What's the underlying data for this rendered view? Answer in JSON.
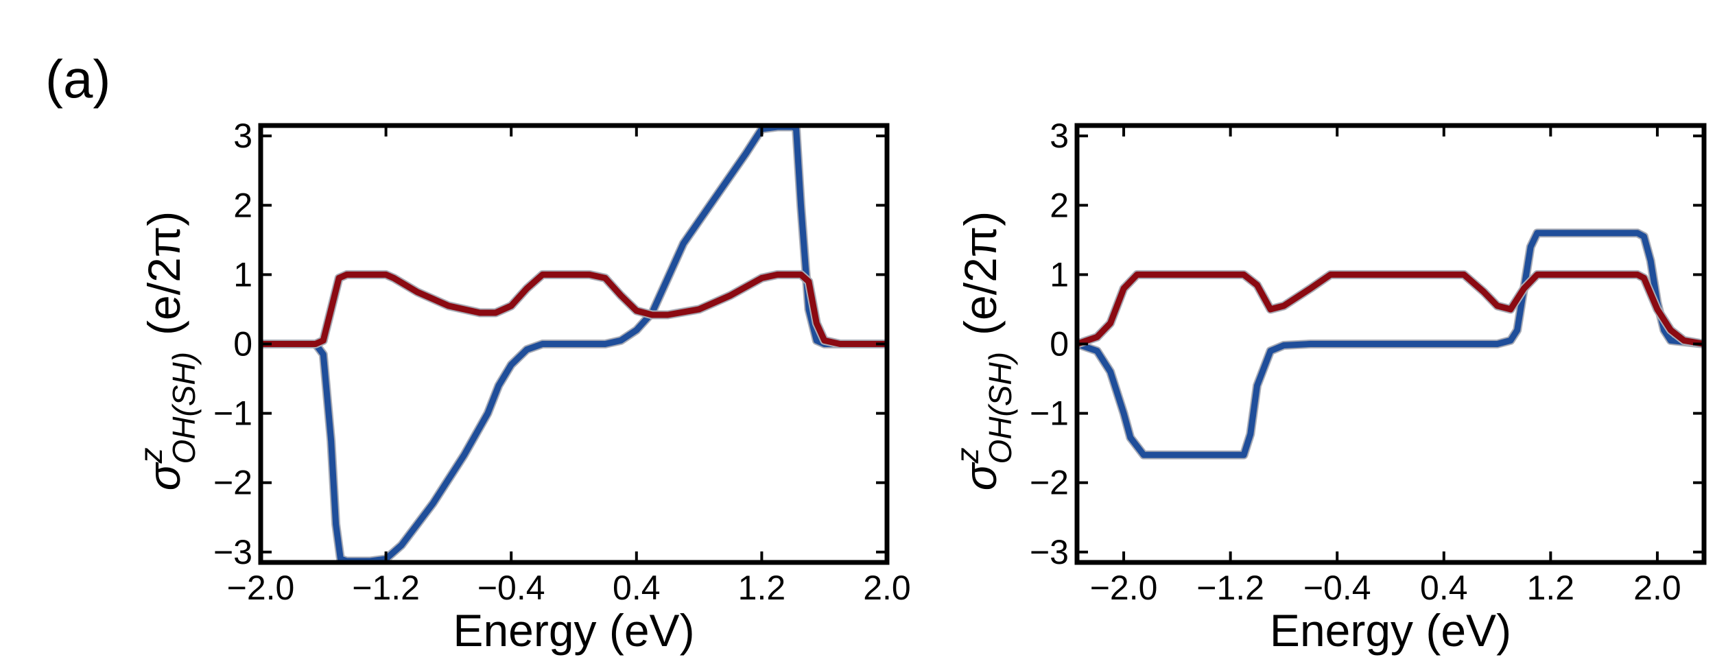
{
  "figure": {
    "panel_label": "(a)"
  },
  "chart_data": [
    {
      "type": "line",
      "xlabel": "Energy (eV)",
      "ylabel": "σ^z_OH(SH) (e/2π)",
      "ylabel_parts": {
        "symbol": "σ",
        "sup": "z",
        "sub": "OH(SH)",
        "unit": "(e/2π)"
      },
      "xlim": [
        -2.0,
        2.0
      ],
      "ylim": [
        -3.15,
        3.15
      ],
      "xticks": [
        -2.0,
        -1.2,
        -0.4,
        0.4,
        1.2,
        2.0
      ],
      "xtick_labels": [
        "−2.0",
        "−1.2",
        "−0.4",
        "0.4",
        "1.2",
        "2.0"
      ],
      "yticks": [
        -3,
        -2,
        -1,
        0,
        1,
        2,
        3
      ],
      "ytick_labels": [
        "−3",
        "−2",
        "−1",
        "0",
        "1",
        "2",
        "3"
      ],
      "series": [
        {
          "name": "blue",
          "color": "#1f4e9a",
          "x": [
            -2.0,
            -1.65,
            -1.6,
            -1.55,
            -1.52,
            -1.49,
            -1.45,
            -1.4,
            -1.3,
            -1.2,
            -1.1,
            -0.9,
            -0.7,
            -0.55,
            -0.48,
            -0.4,
            -0.3,
            -0.2,
            0.2,
            0.3,
            0.4,
            0.5,
            0.6,
            0.7,
            0.9,
            1.1,
            1.2,
            1.3,
            1.4,
            1.42,
            1.45,
            1.5,
            1.55,
            1.6,
            2.0
          ],
          "y": [
            0,
            0,
            -0.15,
            -1.4,
            -2.6,
            -3.1,
            -3.13,
            -3.13,
            -3.13,
            -3.1,
            -2.9,
            -2.3,
            -1.6,
            -1.0,
            -0.6,
            -0.3,
            -0.08,
            0,
            0,
            0.05,
            0.2,
            0.45,
            0.95,
            1.45,
            2.1,
            2.75,
            3.1,
            3.13,
            3.13,
            3.1,
            2.0,
            0.5,
            0.05,
            0,
            0
          ]
        },
        {
          "name": "red",
          "color": "#8b0a12",
          "x": [
            -2.0,
            -1.65,
            -1.6,
            -1.55,
            -1.5,
            -1.45,
            -1.2,
            -1.15,
            -1.0,
            -0.8,
            -0.6,
            -0.5,
            -0.4,
            -0.3,
            -0.2,
            0.1,
            0.2,
            0.3,
            0.4,
            0.5,
            0.6,
            0.8,
            1.0,
            1.2,
            1.3,
            1.45,
            1.5,
            1.55,
            1.6,
            1.7,
            2.0
          ],
          "y": [
            0,
            0,
            0.05,
            0.5,
            0.95,
            1.0,
            1.0,
            0.95,
            0.75,
            0.55,
            0.45,
            0.45,
            0.55,
            0.8,
            1.0,
            1.0,
            0.95,
            0.7,
            0.48,
            0.42,
            0.42,
            0.5,
            0.7,
            0.95,
            1.0,
            1.0,
            0.9,
            0.3,
            0.05,
            0,
            0
          ]
        }
      ]
    },
    {
      "type": "line",
      "xlabel": "Energy (eV)",
      "ylabel": "σ^z_OH(SH) (e/2π)",
      "ylabel_parts": {
        "symbol": "σ",
        "sup": "z",
        "sub": "OH(SH)",
        "unit": "(e/2π)"
      },
      "xlim": [
        -2.35,
        2.35
      ],
      "ylim": [
        -3.15,
        3.15
      ],
      "xticks": [
        -2.0,
        -1.2,
        -0.4,
        0.4,
        1.2,
        2.0
      ],
      "xtick_labels": [
        "−2.0",
        "−1.2",
        "−0.4",
        "0.4",
        "1.2",
        "2.0"
      ],
      "yticks": [
        -3,
        -2,
        -1,
        0,
        1,
        2,
        3
      ],
      "ytick_labels": [
        "−3",
        "−2",
        "−1",
        "0",
        "1",
        "2",
        "3"
      ],
      "series": [
        {
          "name": "blue",
          "color": "#1f4e9a",
          "x": [
            -2.35,
            -2.2,
            -2.1,
            -2.0,
            -1.95,
            -1.85,
            -1.8,
            -1.75,
            -1.1,
            -1.05,
            -1.0,
            -0.9,
            -0.8,
            -0.6,
            0.8,
            0.9,
            0.95,
            1.0,
            1.05,
            1.1,
            1.15,
            1.85,
            1.9,
            1.95,
            2.0,
            2.05,
            2.1,
            2.35
          ],
          "y": [
            0,
            -0.1,
            -0.4,
            -1.0,
            -1.35,
            -1.6,
            -1.6,
            -1.6,
            -1.6,
            -1.3,
            -0.6,
            -0.1,
            -0.02,
            0,
            0,
            0.05,
            0.2,
            0.8,
            1.4,
            1.6,
            1.6,
            1.6,
            1.55,
            1.2,
            0.6,
            0.2,
            0.05,
            0
          ]
        },
        {
          "name": "red",
          "color": "#8b0a12",
          "x": [
            -2.35,
            -2.2,
            -2.1,
            -2.0,
            -1.9,
            -1.8,
            -1.1,
            -1.0,
            -0.9,
            -0.8,
            -0.6,
            -0.45,
            0.55,
            0.7,
            0.8,
            0.9,
            1.0,
            1.1,
            1.15,
            1.85,
            1.9,
            2.0,
            2.1,
            2.2,
            2.35
          ],
          "y": [
            0,
            0.1,
            0.3,
            0.8,
            1.0,
            1.0,
            1.0,
            0.85,
            0.5,
            0.55,
            0.8,
            1.0,
            1.0,
            0.75,
            0.55,
            0.5,
            0.8,
            1.0,
            1.0,
            1.0,
            0.95,
            0.5,
            0.2,
            0.05,
            0
          ]
        }
      ]
    }
  ]
}
